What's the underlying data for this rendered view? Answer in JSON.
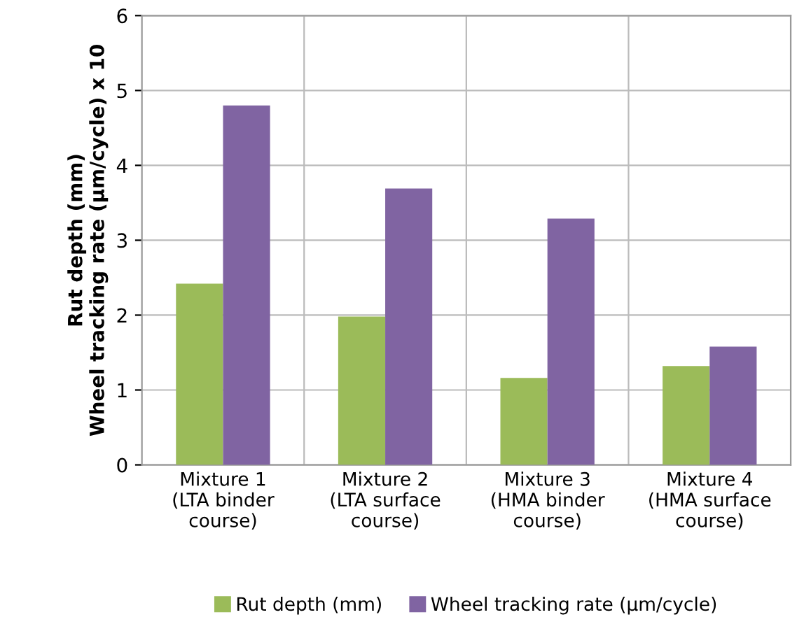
{
  "chart_data": {
    "type": "bar",
    "ylabel": "Rut depth (mm)\nWheel tracking rate (µm/cycle) x 10",
    "categories": [
      "Mixture 1\n(LTA binder\ncourse)",
      "Mixture 2\n(LTA surface\ncourse)",
      "Mixture 3\n(HMA binder\ncourse)",
      "Mixture 4\n(HMA surface\ncourse)"
    ],
    "series": [
      {
        "name": "Rut depth (mm)",
        "color": "#9bbb59",
        "values": [
          2.42,
          1.98,
          1.16,
          1.32
        ]
      },
      {
        "name": "Wheel tracking rate (µm/cycle)",
        "color": "#8064a2",
        "values": [
          4.8,
          3.69,
          3.29,
          1.58
        ]
      }
    ],
    "ylim": [
      0,
      6
    ],
    "yticks": [
      0,
      1,
      2,
      3,
      4,
      5,
      6
    ],
    "grid": true,
    "legend": "bottom"
  }
}
